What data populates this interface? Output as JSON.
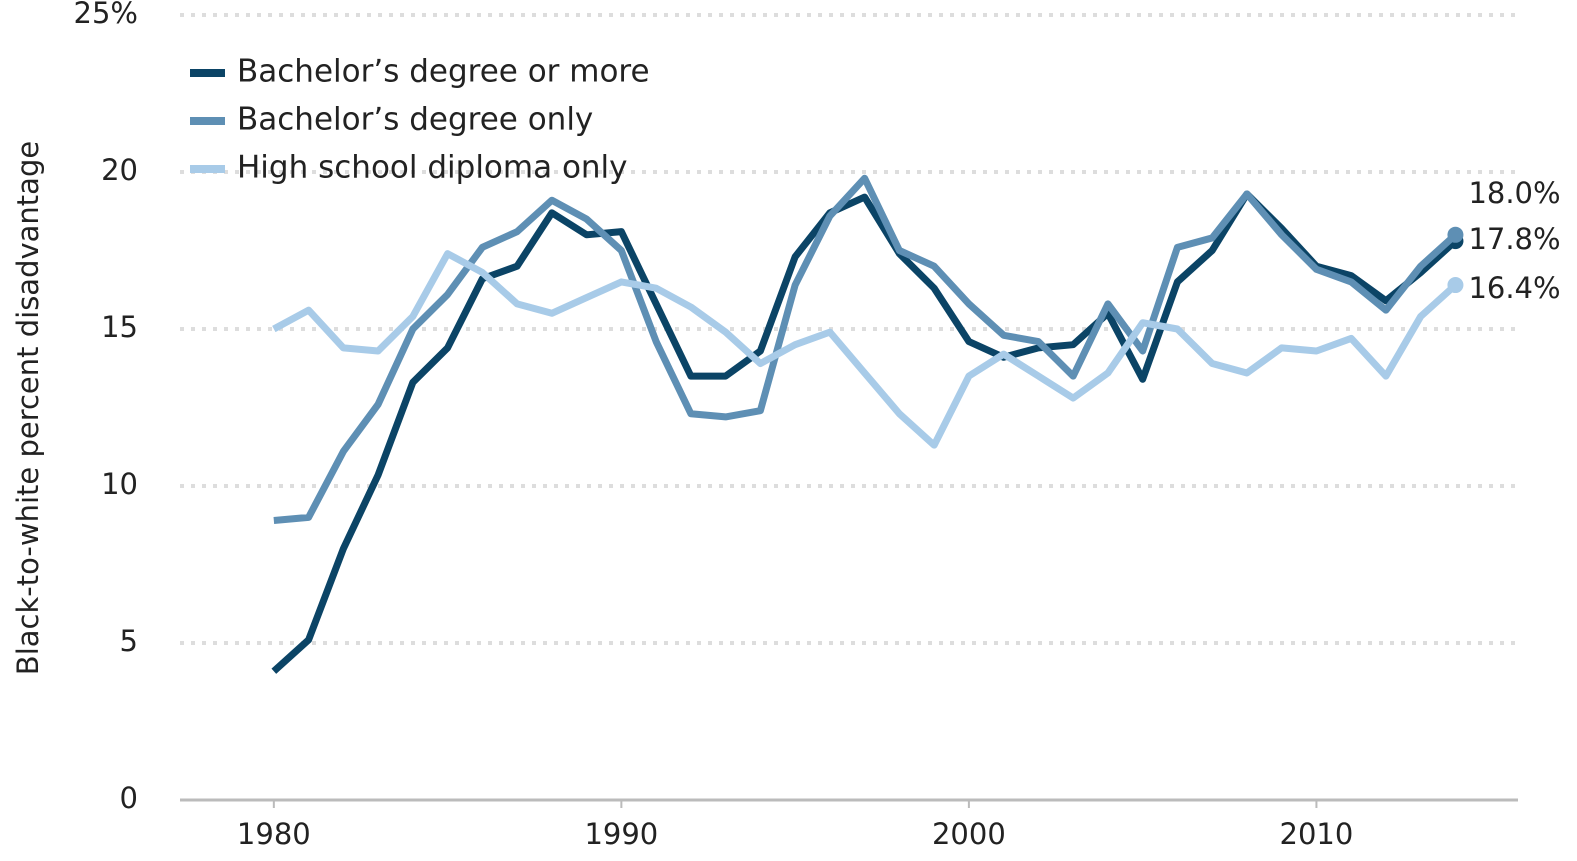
{
  "chart_data": {
    "type": "line",
    "y_label": "Black-to-white percent disadvantage",
    "x": [
      1980,
      1981,
      1982,
      1983,
      1984,
      1985,
      1986,
      1987,
      1988,
      1989,
      1990,
      1991,
      1992,
      1993,
      1994,
      1995,
      1996,
      1997,
      1998,
      1999,
      2000,
      2001,
      2002,
      2003,
      2004,
      2005,
      2006,
      2007,
      2008,
      2009,
      2010,
      2011,
      2012,
      2013,
      2014
    ],
    "series": [
      {
        "name": "Bachelor’s degree or more",
        "color": "#0b4466",
        "values": [
          4.1,
          5.1,
          8.0,
          10.35,
          13.3,
          14.4,
          16.6,
          17.0,
          18.7,
          18.0,
          18.1,
          15.8,
          13.5,
          13.5,
          14.3,
          17.3,
          18.7,
          19.2,
          17.4,
          16.3,
          14.6,
          14.1,
          14.4,
          14.5,
          15.5,
          13.4,
          16.5,
          17.5,
          19.3,
          18.2,
          17.0,
          16.7,
          15.9,
          16.8,
          17.8
        ],
        "value_labels": [
          null,
          null,
          null,
          null,
          null,
          null,
          null,
          null,
          null,
          null,
          null,
          null,
          null,
          null,
          null,
          null,
          null,
          null,
          null,
          null,
          null,
          null,
          null,
          null,
          null,
          null,
          null,
          null,
          null,
          null,
          null,
          null,
          null,
          null,
          "17.8%"
        ]
      },
      {
        "name": "Bachelor’s degree only",
        "color": "#5e8fb4",
        "values": [
          8.9,
          9.0,
          11.1,
          12.6,
          15.0,
          16.1,
          17.6,
          18.1,
          19.1,
          18.5,
          17.5,
          14.6,
          12.3,
          12.2,
          12.4,
          16.4,
          18.6,
          19.8,
          17.5,
          17.0,
          15.8,
          14.8,
          14.6,
          13.5,
          15.8,
          14.3,
          17.6,
          17.9,
          19.3,
          18.0,
          16.9,
          16.5,
          15.6,
          17.0,
          18.0
        ],
        "value_labels": [
          null,
          null,
          null,
          null,
          null,
          null,
          null,
          null,
          null,
          null,
          null,
          null,
          null,
          null,
          null,
          null,
          null,
          null,
          null,
          null,
          null,
          null,
          null,
          null,
          null,
          null,
          null,
          null,
          null,
          null,
          null,
          null,
          null,
          null,
          "18.0%"
        ]
      },
      {
        "name": "High school diploma only",
        "color": "#a8cbe8",
        "values": [
          15.0,
          15.6,
          14.4,
          14.3,
          15.4,
          17.4,
          16.8,
          15.8,
          15.5,
          16.0,
          16.5,
          16.3,
          15.7,
          14.9,
          13.9,
          14.5,
          14.9,
          13.6,
          12.3,
          11.3,
          13.5,
          14.2,
          13.5,
          12.8,
          13.6,
          15.2,
          15.0,
          13.9,
          13.6,
          14.4,
          14.3,
          14.7,
          13.5,
          15.4,
          16.4
        ],
        "value_labels": [
          null,
          null,
          null,
          null,
          null,
          null,
          null,
          null,
          null,
          null,
          null,
          null,
          null,
          null,
          null,
          null,
          null,
          null,
          null,
          null,
          null,
          null,
          null,
          null,
          null,
          null,
          null,
          null,
          null,
          null,
          null,
          null,
          null,
          null,
          "16.4%"
        ]
      }
    ],
    "xlim": [
      1977.3,
      2015.8
    ],
    "xticks": [
      1980,
      1990,
      2000,
      2010
    ],
    "ylim": [
      0,
      25
    ],
    "yticks": [
      0,
      5,
      10,
      15,
      20,
      {
        "value": 25,
        "label": "25%"
      }
    ],
    "grid": true
  }
}
